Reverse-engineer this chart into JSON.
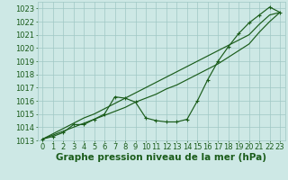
{
  "xlabel": "Graphe pression niveau de la mer (hPa)",
  "background_color": "#cde8e5",
  "grid_color": "#a0c8c5",
  "line_color": "#1a5c1a",
  "x": [
    0,
    1,
    2,
    3,
    4,
    5,
    6,
    7,
    8,
    9,
    10,
    11,
    12,
    13,
    14,
    15,
    16,
    17,
    18,
    19,
    20,
    21,
    22,
    23
  ],
  "y_main": [
    1013.1,
    1013.3,
    1013.6,
    1014.2,
    1014.2,
    1014.6,
    1015.0,
    1016.3,
    1016.2,
    1015.9,
    1014.7,
    1014.5,
    1014.4,
    1014.4,
    1014.6,
    1016.0,
    1017.6,
    1019.0,
    1020.1,
    1021.1,
    1021.9,
    1022.5,
    1023.1,
    1022.7
  ],
  "y_linear1": [
    1013.1,
    1013.5,
    1013.9,
    1014.3,
    1014.7,
    1015.0,
    1015.4,
    1015.8,
    1016.2,
    1016.6,
    1017.0,
    1017.4,
    1017.8,
    1018.2,
    1018.6,
    1019.0,
    1019.4,
    1019.8,
    1020.2,
    1020.6,
    1021.0,
    1021.8,
    1022.5,
    1022.7
  ],
  "y_linear2": [
    1013.1,
    1013.4,
    1013.7,
    1014.0,
    1014.3,
    1014.6,
    1014.9,
    1015.2,
    1015.5,
    1015.9,
    1016.2,
    1016.5,
    1016.9,
    1017.2,
    1017.6,
    1018.0,
    1018.4,
    1018.8,
    1019.3,
    1019.8,
    1020.3,
    1021.2,
    1022.0,
    1022.7
  ],
  "ylim": [
    1013,
    1023.5
  ],
  "xlim": [
    -0.5,
    23.5
  ],
  "yticks": [
    1013,
    1014,
    1015,
    1016,
    1017,
    1018,
    1019,
    1020,
    1021,
    1022,
    1023
  ],
  "xticks": [
    0,
    1,
    2,
    3,
    4,
    5,
    6,
    7,
    8,
    9,
    10,
    11,
    12,
    13,
    14,
    15,
    16,
    17,
    18,
    19,
    20,
    21,
    22,
    23
  ],
  "xlabel_fontsize": 7.5,
  "tick_fontsize": 6.0,
  "figwidth": 3.2,
  "figheight": 2.0,
  "dpi": 100
}
